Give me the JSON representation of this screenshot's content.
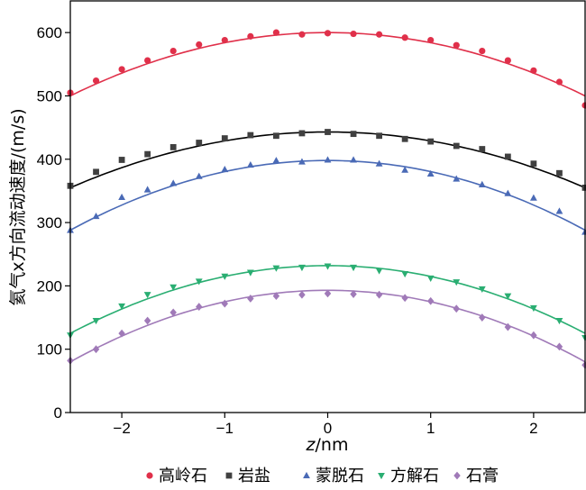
{
  "chart_data": {
    "type": "scatter",
    "xlabel": {
      "var": "z",
      "unit": "/nm"
    },
    "ylabel": "氦气x方向流动速度/(m/s)",
    "xlim": [
      -2.5,
      2.5
    ],
    "ylim": [
      0,
      650
    ],
    "xticks": [
      -2,
      -1,
      0,
      1,
      2
    ],
    "xtick_labels": [
      "−2",
      "−1",
      "0",
      "1",
      "2"
    ],
    "yticks": [
      0,
      100,
      200,
      300,
      400,
      500,
      600
    ],
    "yticklabels": [
      "0",
      "100",
      "200",
      "300",
      "400",
      "500",
      "600"
    ],
    "legend_position": "bottom",
    "series": [
      {
        "name": "高岭石",
        "marker": "circle",
        "color": "#e0304a",
        "fit": {
          "peak_z": 0.0,
          "peak_v": 600,
          "v_edge": 500
        },
        "x": [
          -2.5,
          -2.25,
          -2.0,
          -1.75,
          -1.5,
          -1.25,
          -1.0,
          -0.75,
          -0.5,
          -0.25,
          0.0,
          0.25,
          0.5,
          0.75,
          1.0,
          1.25,
          1.5,
          1.75,
          2.0,
          2.25,
          2.5
        ],
        "y": [
          505,
          524,
          542,
          556,
          571,
          581,
          588,
          594,
          600,
          597,
          599,
          598,
          597,
          592,
          588,
          580,
          571,
          556,
          540,
          522,
          485
        ]
      },
      {
        "name": "岩盐",
        "marker": "square",
        "color": "#404040",
        "fit": {
          "peak_z": 0.0,
          "peak_v": 443,
          "v_edge": 355
        },
        "x": [
          -2.5,
          -2.25,
          -2.0,
          -1.75,
          -1.5,
          -1.25,
          -1.0,
          -0.75,
          -0.5,
          -0.25,
          0.0,
          0.25,
          0.5,
          0.75,
          1.0,
          1.25,
          1.5,
          1.75,
          2.0,
          2.25,
          2.5
        ],
        "y": [
          358,
          380,
          399,
          408,
          419,
          426,
          433,
          438,
          437,
          441,
          443,
          440,
          437,
          432,
          428,
          421,
          416,
          404,
          393,
          378,
          355
        ]
      },
      {
        "name": "蒙脱石",
        "marker": "triangle-up",
        "color": "#4a6ab6",
        "fit": {
          "peak_z": 0.0,
          "peak_v": 398,
          "v_edge": 288
        },
        "x": [
          -2.5,
          -2.25,
          -2.0,
          -1.75,
          -1.5,
          -1.25,
          -1.0,
          -0.75,
          -0.5,
          -0.25,
          0.0,
          0.25,
          0.5,
          0.75,
          1.0,
          1.25,
          1.5,
          1.75,
          2.0,
          2.25,
          2.5
        ],
        "y": [
          288,
          310,
          340,
          352,
          362,
          373,
          384,
          391,
          398,
          396,
          399,
          399,
          393,
          383,
          377,
          369,
          360,
          346,
          339,
          318,
          285
        ]
      },
      {
        "name": "方解石",
        "marker": "triangle-down",
        "color": "#2aae72",
        "fit": {
          "peak_z": 0.0,
          "peak_v": 232,
          "v_edge": 125
        },
        "x": [
          -2.5,
          -2.25,
          -2.0,
          -1.75,
          -1.5,
          -1.25,
          -1.0,
          -0.75,
          -0.5,
          -0.25,
          0.0,
          0.25,
          0.5,
          0.75,
          1.0,
          1.25,
          1.5,
          1.75,
          2.0,
          2.25,
          2.5
        ],
        "y": [
          122,
          145,
          168,
          186,
          198,
          207,
          215,
          221,
          228,
          229,
          231,
          229,
          224,
          219,
          212,
          206,
          195,
          184,
          165,
          145,
          118
        ]
      },
      {
        "name": "石膏",
        "marker": "diamond",
        "color": "#a07ab8",
        "fit": {
          "peak_z": 0.0,
          "peak_v": 193,
          "v_edge": 80
        },
        "x": [
          -2.5,
          -2.25,
          -2.0,
          -1.75,
          -1.5,
          -1.25,
          -1.0,
          -0.75,
          -0.5,
          -0.25,
          0.0,
          0.25,
          0.5,
          0.75,
          1.0,
          1.25,
          1.5,
          1.75,
          2.0,
          2.25,
          2.5
        ],
        "y": [
          82,
          100,
          125,
          145,
          158,
          167,
          172,
          180,
          184,
          186,
          188,
          187,
          186,
          181,
          176,
          164,
          150,
          135,
          122,
          104,
          75
        ]
      }
    ]
  }
}
